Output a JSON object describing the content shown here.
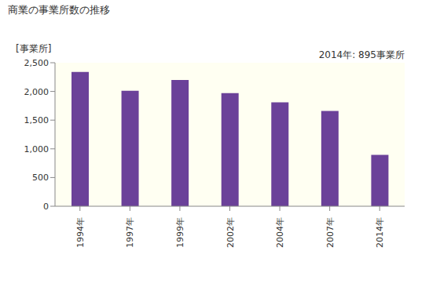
{
  "chart_data": {
    "type": "bar",
    "title": "商業の事業所数の推移",
    "y_label": "[事業所]",
    "annotation": "2014年: 895事業所",
    "categories": [
      "1994年",
      "1997年",
      "1999年",
      "2002年",
      "2004年",
      "2007年",
      "2014年"
    ],
    "values": [
      2340,
      2010,
      2200,
      1970,
      1810,
      1660,
      895
    ],
    "color": "#6b4199",
    "ylim": [
      0,
      2500
    ],
    "yticks": [
      0,
      500,
      {
        "value": 1000,
        "label": "1,000"
      },
      {
        "value": 1500,
        "label": "1,500"
      },
      {
        "value": 2000,
        "label": "2,000"
      },
      {
        "value": 2500,
        "label": "2,500"
      }
    ],
    "grid": false
  }
}
